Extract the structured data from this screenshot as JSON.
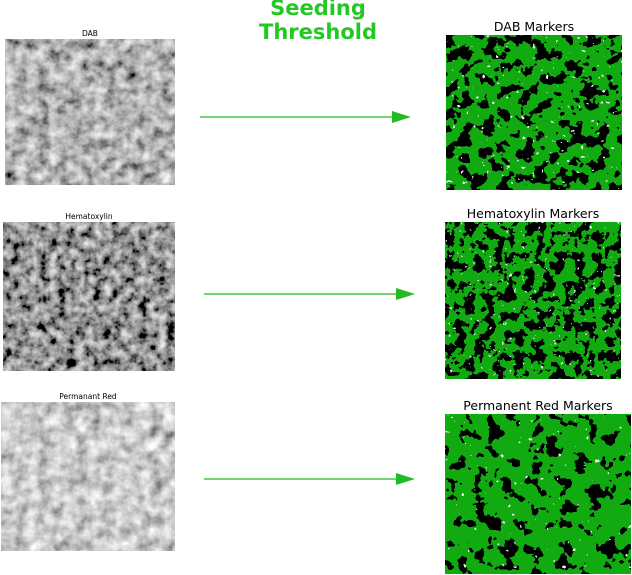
{
  "header": {
    "title_line1": "Seeding",
    "title_line2": "Threshold"
  },
  "rows": [
    {
      "input_label": "DAB",
      "output_label": "DAB Markers"
    },
    {
      "input_label": "Hematoxylin",
      "output_label": "Hematoxylin Markers"
    },
    {
      "input_label": "Permanant Red",
      "output_label": "Permanent Red Markers"
    }
  ],
  "colors": {
    "accent": "#22c922",
    "marker_green": "#11aa11",
    "arrow": "#22bb22"
  }
}
